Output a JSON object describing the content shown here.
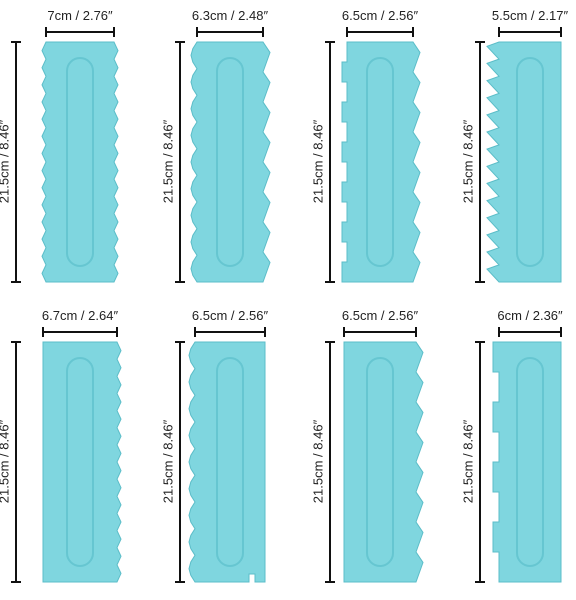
{
  "scrapers": [
    {
      "width_label": "7cm / 2.76″",
      "height_label": "21.5cm / 8.46″",
      "left_edge": "zigzag-small",
      "right_edge": "zigzag-small",
      "bottom_slots": false
    },
    {
      "width_label": "6.3cm / 2.48″",
      "height_label": "21.5cm / 8.46″",
      "left_edge": "scallop",
      "right_edge": "wave-teeth",
      "bottom_slots": false
    },
    {
      "width_label": "6.5cm / 2.56″",
      "height_label": "21.5cm / 8.46″",
      "left_edge": "square-teeth",
      "right_edge": "wave-teeth",
      "bottom_slots": false
    },
    {
      "width_label": "5.5cm / 2.17″",
      "height_label": "21.5cm / 8.46″",
      "left_edge": "large-zigzag",
      "right_edge": "flat",
      "bottom_slots": false
    },
    {
      "width_label": "6.7cm / 2.64″",
      "height_label": "21.5cm / 8.46″",
      "left_edge": "flat",
      "right_edge": "zigzag-small",
      "bottom_slots": false
    },
    {
      "width_label": "6.5cm / 2.56″",
      "height_label": "21.5cm / 8.46″",
      "left_edge": "scallop",
      "right_edge": "flat",
      "bottom_slots": true
    },
    {
      "width_label": "6.5cm / 2.56″",
      "height_label": "21.5cm / 8.46″",
      "left_edge": "flat",
      "right_edge": "wave-teeth",
      "bottom_slots": false
    },
    {
      "width_label": "6cm / 2.36″",
      "height_label": "21.5cm / 8.46″",
      "left_edge": "castellated",
      "right_edge": "flat",
      "bottom_slots": false
    }
  ],
  "colors": {
    "scraper_fill": "#7fd6df",
    "scraper_stroke": "#5bbdc8",
    "handle_stroke": "#66c6d1",
    "dimension_line": "#111111"
  }
}
